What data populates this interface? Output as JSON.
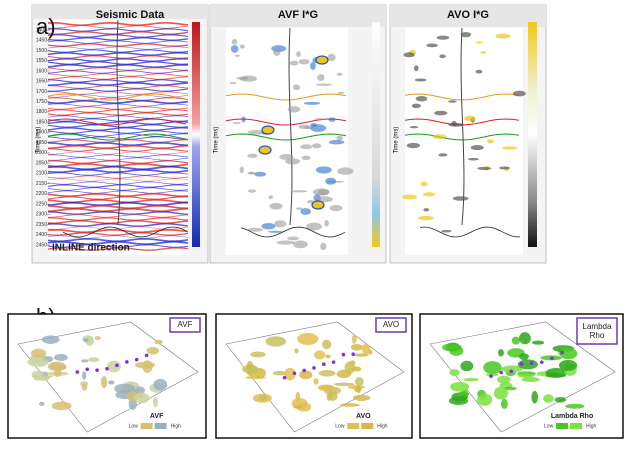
{
  "panel_a": {
    "label": "a)",
    "panels": [
      {
        "title": "Seismic Data",
        "axis_label": "Time (ms)",
        "caption": "INLINE direction",
        "time_ticks": [
          1400,
          1450,
          1500,
          1550,
          1600,
          1650,
          1700,
          1750,
          1800,
          1850,
          1900,
          1950,
          2000,
          2050,
          2100,
          2150,
          2200,
          2250,
          2300,
          2350,
          2400,
          2450
        ]
      },
      {
        "title": "AVF I*G",
        "axis_label": "Time (ms)"
      },
      {
        "title": "AVO I*G",
        "axis_label": "Time (ms)"
      }
    ]
  },
  "panel_b": {
    "label": "b)",
    "maps": [
      {
        "tag": "AVF",
        "legend_title": "AVF",
        "legend_low": "Low",
        "legend_high": "High"
      },
      {
        "tag": "AVO",
        "legend_title": "AVO",
        "legend_low": "Low",
        "legend_high": "High"
      },
      {
        "tag": "Lambda Rho",
        "legend_title": "Lambda Rho",
        "legend_low": "Low",
        "legend_high": "High"
      }
    ]
  }
}
